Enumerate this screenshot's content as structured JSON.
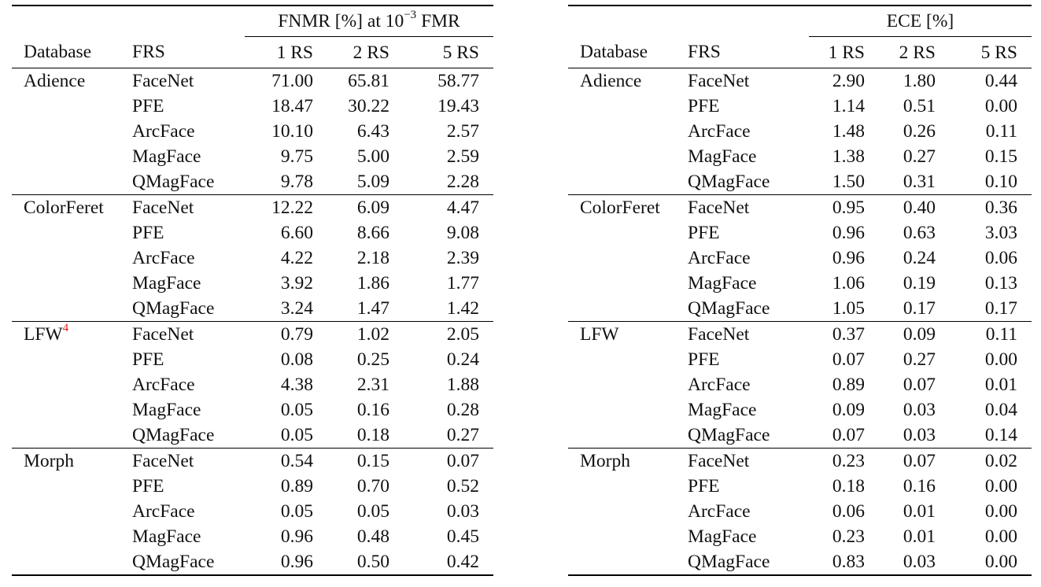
{
  "left_table": {
    "group_header_prefix": "FNMR [%] at 10",
    "group_header_exponent": "−3",
    "group_header_suffix": " FMR",
    "columns": [
      "Database",
      "FRS",
      "1 RS",
      "2 RS",
      "5 RS"
    ],
    "groups": [
      {
        "database": "Adience",
        "footnote_ref": "",
        "rows": [
          {
            "frs": "FaceNet",
            "v1": "71.00",
            "v2": "65.81",
            "v5": "58.77"
          },
          {
            "frs": "PFE",
            "v1": "18.47",
            "v2": "30.22",
            "v5": "19.43"
          },
          {
            "frs": "ArcFace",
            "v1": "10.10",
            "v2": "6.43",
            "v5": "2.57"
          },
          {
            "frs": "MagFace",
            "v1": "9.75",
            "v2": "5.00",
            "v5": "2.59"
          },
          {
            "frs": "QMagFace",
            "v1": "9.78",
            "v2": "5.09",
            "v5": "2.28"
          }
        ]
      },
      {
        "database": "ColorFeret",
        "footnote_ref": "",
        "rows": [
          {
            "frs": "FaceNet",
            "v1": "12.22",
            "v2": "6.09",
            "v5": "4.47"
          },
          {
            "frs": "PFE",
            "v1": "6.60",
            "v2": "8.66",
            "v5": "9.08"
          },
          {
            "frs": "ArcFace",
            "v1": "4.22",
            "v2": "2.18",
            "v5": "2.39"
          },
          {
            "frs": "MagFace",
            "v1": "3.92",
            "v2": "1.86",
            "v5": "1.77"
          },
          {
            "frs": "QMagFace",
            "v1": "3.24",
            "v2": "1.47",
            "v5": "1.42"
          }
        ]
      },
      {
        "database": "LFW",
        "footnote_ref": "4",
        "rows": [
          {
            "frs": "FaceNet",
            "v1": "0.79",
            "v2": "1.02",
            "v5": "2.05"
          },
          {
            "frs": "PFE",
            "v1": "0.08",
            "v2": "0.25",
            "v5": "0.24"
          },
          {
            "frs": "ArcFace",
            "v1": "4.38",
            "v2": "2.31",
            "v5": "1.88"
          },
          {
            "frs": "MagFace",
            "v1": "0.05",
            "v2": "0.16",
            "v5": "0.28"
          },
          {
            "frs": "QMagFace",
            "v1": "0.05",
            "v2": "0.18",
            "v5": "0.27"
          }
        ]
      },
      {
        "database": "Morph",
        "footnote_ref": "",
        "rows": [
          {
            "frs": "FaceNet",
            "v1": "0.54",
            "v2": "0.15",
            "v5": "0.07"
          },
          {
            "frs": "PFE",
            "v1": "0.89",
            "v2": "0.70",
            "v5": "0.52"
          },
          {
            "frs": "ArcFace",
            "v1": "0.05",
            "v2": "0.05",
            "v5": "0.03"
          },
          {
            "frs": "MagFace",
            "v1": "0.96",
            "v2": "0.48",
            "v5": "0.45"
          },
          {
            "frs": "QMagFace",
            "v1": "0.96",
            "v2": "0.50",
            "v5": "0.42"
          }
        ]
      }
    ]
  },
  "right_table": {
    "group_header": "ECE [%]",
    "columns": [
      "Database",
      "FRS",
      "1 RS",
      "2 RS",
      "5 RS"
    ],
    "groups": [
      {
        "database": "Adience",
        "rows": [
          {
            "frs": "FaceNet",
            "v1": "2.90",
            "v2": "1.80",
            "v5": "0.44"
          },
          {
            "frs": "PFE",
            "v1": "1.14",
            "v2": "0.51",
            "v5": "0.00"
          },
          {
            "frs": "ArcFace",
            "v1": "1.48",
            "v2": "0.26",
            "v5": "0.11"
          },
          {
            "frs": "MagFace",
            "v1": "1.38",
            "v2": "0.27",
            "v5": "0.15"
          },
          {
            "frs": "QMagFace",
            "v1": "1.50",
            "v2": "0.31",
            "v5": "0.10"
          }
        ]
      },
      {
        "database": "ColorFeret",
        "rows": [
          {
            "frs": "FaceNet",
            "v1": "0.95",
            "v2": "0.40",
            "v5": "0.36"
          },
          {
            "frs": "PFE",
            "v1": "0.96",
            "v2": "0.63",
            "v5": "3.03"
          },
          {
            "frs": "ArcFace",
            "v1": "0.96",
            "v2": "0.24",
            "v5": "0.06"
          },
          {
            "frs": "MagFace",
            "v1": "1.06",
            "v2": "0.19",
            "v5": "0.13"
          },
          {
            "frs": "QMagFace",
            "v1": "1.05",
            "v2": "0.17",
            "v5": "0.17"
          }
        ]
      },
      {
        "database": "LFW",
        "rows": [
          {
            "frs": "FaceNet",
            "v1": "0.37",
            "v2": "0.09",
            "v5": "0.11"
          },
          {
            "frs": "PFE",
            "v1": "0.07",
            "v2": "0.27",
            "v5": "0.00"
          },
          {
            "frs": "ArcFace",
            "v1": "0.89",
            "v2": "0.07",
            "v5": "0.01"
          },
          {
            "frs": "MagFace",
            "v1": "0.09",
            "v2": "0.03",
            "v5": "0.04"
          },
          {
            "frs": "QMagFace",
            "v1": "0.07",
            "v2": "0.03",
            "v5": "0.14"
          }
        ]
      },
      {
        "database": "Morph",
        "rows": [
          {
            "frs": "FaceNet",
            "v1": "0.23",
            "v2": "0.07",
            "v5": "0.02"
          },
          {
            "frs": "PFE",
            "v1": "0.18",
            "v2": "0.16",
            "v5": "0.00"
          },
          {
            "frs": "ArcFace",
            "v1": "0.06",
            "v2": "0.01",
            "v5": "0.00"
          },
          {
            "frs": "MagFace",
            "v1": "0.23",
            "v2": "0.01",
            "v5": "0.00"
          },
          {
            "frs": "QMagFace",
            "v1": "0.83",
            "v2": "0.03",
            "v5": "0.00"
          }
        ]
      }
    ]
  }
}
